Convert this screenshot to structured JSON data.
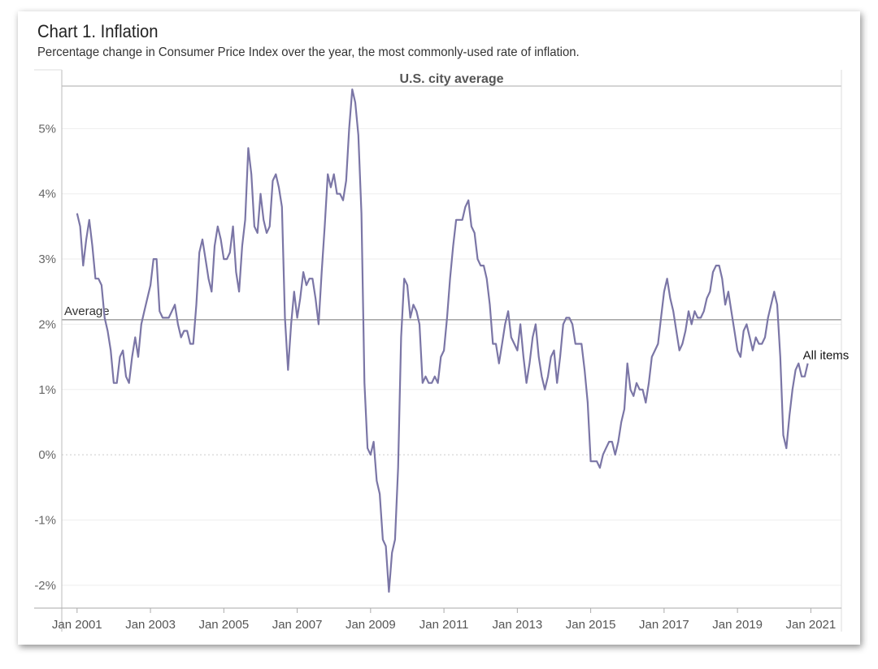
{
  "chart_data": {
    "type": "line",
    "title": "Chart 1. Inflation",
    "subtitle": "Percentage change in Consumer Price Index over the year, the most commonly-used rate of inflation.",
    "panel_title": "U.S. city average",
    "xlabel": "",
    "ylabel": "",
    "y_ticks": [
      5,
      4,
      3,
      2,
      1,
      0,
      -1,
      -2
    ],
    "y_tick_labels": [
      "5%",
      "4%",
      "3%",
      "2%",
      "1%",
      "0%",
      "-1%",
      "-2%"
    ],
    "ylim": [
      -2.35,
      5.9
    ],
    "xlim": [
      "2000-08",
      "2021-11"
    ],
    "x_ticks": [
      "2001-01",
      "2003-01",
      "2005-01",
      "2007-01",
      "2009-01",
      "2011-01",
      "2013-01",
      "2015-01",
      "2017-01",
      "2019-01",
      "2021-01"
    ],
    "x_tick_labels": [
      "Jan 2001",
      "Jan 2003",
      "Jan 2005",
      "Jan 2007",
      "Jan 2009",
      "Jan 2011",
      "Jan 2013",
      "Jan 2015",
      "Jan 2017",
      "Jan 2019",
      "Jan 2021"
    ],
    "grid": true,
    "reference_line": {
      "label": "Average",
      "value": 2.07
    },
    "series": [
      {
        "name": "All items",
        "color": "#7b76a6",
        "start": "2001-01",
        "values": [
          3.7,
          3.5,
          2.9,
          3.3,
          3.6,
          3.2,
          2.7,
          2.7,
          2.6,
          2.1,
          1.9,
          1.6,
          1.1,
          1.1,
          1.5,
          1.6,
          1.2,
          1.1,
          1.5,
          1.8,
          1.5,
          2.0,
          2.2,
          2.4,
          2.6,
          3.0,
          3.0,
          2.2,
          2.1,
          2.1,
          2.1,
          2.2,
          2.3,
          2.0,
          1.8,
          1.9,
          1.9,
          1.7,
          1.7,
          2.3,
          3.1,
          3.3,
          3.0,
          2.7,
          2.5,
          3.2,
          3.5,
          3.3,
          3.0,
          3.0,
          3.1,
          3.5,
          2.8,
          2.5,
          3.2,
          3.6,
          4.7,
          4.3,
          3.5,
          3.4,
          4.0,
          3.6,
          3.4,
          3.5,
          4.2,
          4.3,
          4.1,
          3.8,
          2.1,
          1.3,
          2.0,
          2.5,
          2.1,
          2.4,
          2.8,
          2.6,
          2.7,
          2.7,
          2.4,
          2.0,
          2.8,
          3.5,
          4.3,
          4.1,
          4.3,
          4.0,
          4.0,
          3.9,
          4.2,
          5.0,
          5.6,
          5.4,
          4.9,
          3.7,
          1.1,
          0.1,
          0.0,
          0.2,
          -0.4,
          -0.6,
          -1.3,
          -1.4,
          -2.1,
          -1.5,
          -1.3,
          -0.2,
          1.8,
          2.7,
          2.6,
          2.1,
          2.3,
          2.2,
          2.0,
          1.1,
          1.2,
          1.1,
          1.1,
          1.2,
          1.1,
          1.5,
          1.6,
          2.1,
          2.7,
          3.2,
          3.6,
          3.6,
          3.6,
          3.8,
          3.9,
          3.5,
          3.4,
          3.0,
          2.9,
          2.9,
          2.7,
          2.3,
          1.7,
          1.7,
          1.4,
          1.7,
          2.0,
          2.2,
          1.8,
          1.7,
          1.6,
          2.0,
          1.5,
          1.1,
          1.4,
          1.8,
          2.0,
          1.5,
          1.2,
          1.0,
          1.2,
          1.5,
          1.6,
          1.1,
          1.5,
          2.0,
          2.1,
          2.1,
          2.0,
          1.7,
          1.7,
          1.7,
          1.3,
          0.8,
          -0.1,
          -0.1,
          -0.1,
          -0.2,
          0.0,
          0.1,
          0.2,
          0.2,
          0.0,
          0.2,
          0.5,
          0.7,
          1.4,
          1.0,
          0.9,
          1.1,
          1.0,
          1.0,
          0.8,
          1.1,
          1.5,
          1.6,
          1.7,
          2.1,
          2.5,
          2.7,
          2.4,
          2.2,
          1.9,
          1.6,
          1.7,
          1.9,
          2.2,
          2.0,
          2.2,
          2.1,
          2.1,
          2.2,
          2.4,
          2.5,
          2.8,
          2.9,
          2.9,
          2.7,
          2.3,
          2.5,
          2.2,
          1.9,
          1.6,
          1.5,
          1.9,
          2.0,
          1.8,
          1.6,
          1.8,
          1.7,
          1.7,
          1.8,
          2.1,
          2.3,
          2.5,
          2.3,
          1.5,
          0.3,
          0.1,
          0.6,
          1.0,
          1.3,
          1.4,
          1.2,
          1.2,
          1.4
        ]
      }
    ],
    "series_label": "All items"
  }
}
